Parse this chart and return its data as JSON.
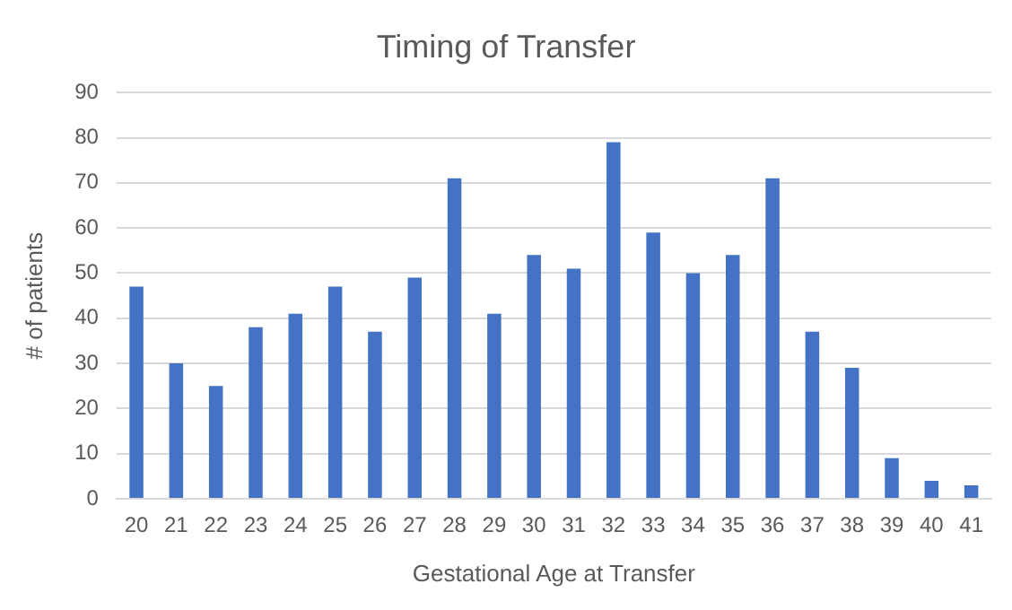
{
  "chart_data": {
    "type": "bar",
    "title": "Timing of Transfer",
    "xlabel": "Gestational Age at Transfer",
    "ylabel": "# of patients",
    "categories": [
      "20",
      "21",
      "22",
      "23",
      "24",
      "25",
      "26",
      "27",
      "28",
      "29",
      "30",
      "31",
      "32",
      "33",
      "34",
      "35",
      "36",
      "37",
      "38",
      "39",
      "40",
      "41"
    ],
    "values": [
      47,
      30,
      25,
      38,
      41,
      47,
      37,
      49,
      71,
      41,
      54,
      51,
      79,
      59,
      50,
      54,
      71,
      37,
      29,
      9,
      4,
      3
    ],
    "color": "#4472c4",
    "ylim": [
      0,
      90
    ],
    "yticks": [
      0,
      10,
      20,
      30,
      40,
      50,
      60,
      70,
      80,
      90
    ],
    "grid": "y"
  }
}
